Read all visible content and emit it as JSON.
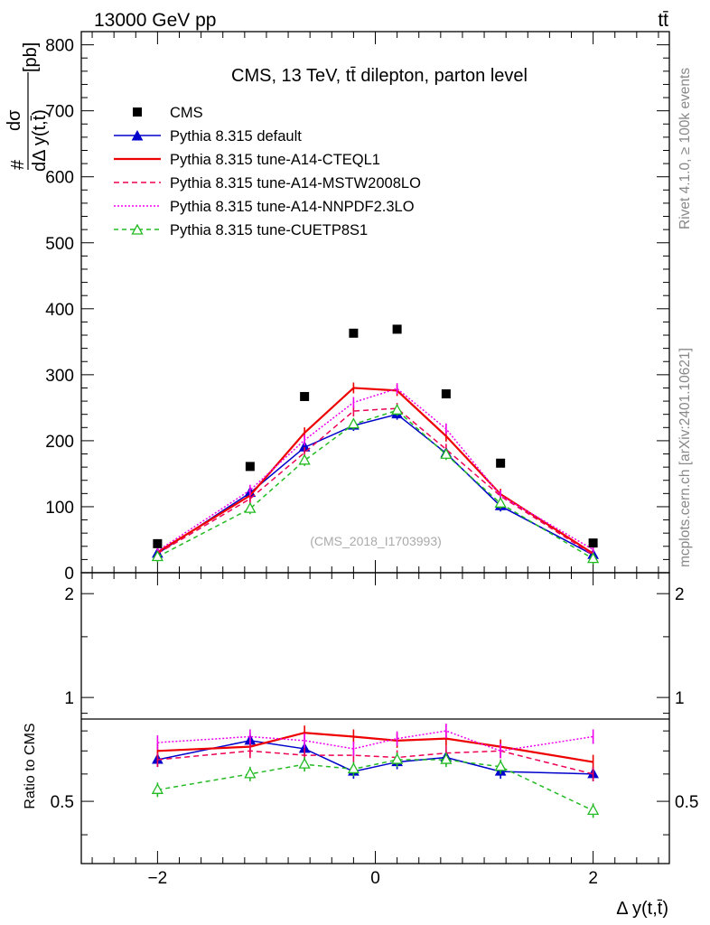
{
  "header": {
    "left": "13000 GeV pp",
    "right": "tt̄"
  },
  "side_labels": {
    "rivet": "Rivet 4.1.0, ≥ 100k events",
    "mcplots": "mcplots.cern.ch [arXiv:2401.10621]"
  },
  "chart_data": {
    "type": "line",
    "title": "CMS, 13 TeV, tt̄ dilepton, parton level",
    "analysis_tag": "(CMS_2018_I1703993)",
    "xlabel": "Δ y(t,t̄)",
    "ylabel": "dσ / dΔ y(t,t̄) [pb]",
    "ylabel_hash": "#",
    "ylabel_num": "dσ",
    "ylabel_den": "dΔ y(t,t̄)",
    "ylabel_unit": "[pb]",
    "ratio_ylabel": "Ratio to CMS",
    "xlim": [
      -2.7,
      2.7
    ],
    "ylim": [
      0,
      820
    ],
    "ratio_ylim": [
      0.33,
      2.3
    ],
    "x_ticks": [
      "−2",
      "0",
      "2"
    ],
    "y_ticks": [
      "0",
      "100",
      "200",
      "300",
      "400",
      "500",
      "600",
      "700",
      "800"
    ],
    "ratio_ticks": [
      "0.5",
      "1",
      "2"
    ],
    "ratio_ticks_right": [
      "0.5",
      "1",
      "2"
    ],
    "x": [
      -2.0,
      -1.15,
      -0.65,
      -0.2,
      0.2,
      0.65,
      1.15,
      2.0
    ],
    "data": {
      "name": "CMS",
      "values": [
        44,
        161,
        267,
        363,
        369,
        271,
        166,
        45
      ]
    },
    "series": [
      {
        "name": "Pythia 8.315 default",
        "color": "#0000cc",
        "dash": "",
        "marker": "triangle-filled",
        "values": [
          29,
          121,
          190,
          223,
          240,
          181,
          101,
          27
        ],
        "ratio": [
          0.66,
          0.75,
          0.71,
          0.61,
          0.65,
          0.67,
          0.61,
          0.6
        ]
      },
      {
        "name": "Pythia 8.315 tune-A14-CTEQL1",
        "color": "#ee0000",
        "dash": "",
        "marker": "none",
        "values": [
          31,
          117,
          212,
          280,
          276,
          207,
          119,
          29
        ],
        "ratio": [
          0.7,
          0.72,
          0.79,
          0.77,
          0.75,
          0.76,
          0.72,
          0.65
        ]
      },
      {
        "name": "Pythia 8.315 tune-A14-MSTW2008LO",
        "color": "#ee0055",
        "dash": "6,4",
        "marker": "none",
        "values": [
          29,
          112,
          182,
          245,
          249,
          187,
          116,
          27
        ],
        "ratio": [
          0.66,
          0.7,
          0.68,
          0.68,
          0.67,
          0.69,
          0.7,
          0.6
        ]
      },
      {
        "name": "Pythia 8.315 tune-A14-NNPDF2.3LO",
        "color": "#ee00ee",
        "dash": "2,2",
        "marker": "none",
        "values": [
          33,
          125,
          201,
          258,
          279,
          218,
          117,
          35
        ],
        "ratio": [
          0.74,
          0.77,
          0.75,
          0.71,
          0.76,
          0.8,
          0.7,
          0.77
        ]
      },
      {
        "name": "Pythia 8.315 tune-CUETP8S1",
        "color": "#22bb22",
        "dash": "5,4",
        "marker": "triangle-open",
        "values": [
          24,
          97,
          170,
          225,
          246,
          179,
          105,
          21
        ],
        "ratio": [
          0.54,
          0.6,
          0.64,
          0.62,
          0.66,
          0.66,
          0.63,
          0.47
        ]
      }
    ]
  }
}
